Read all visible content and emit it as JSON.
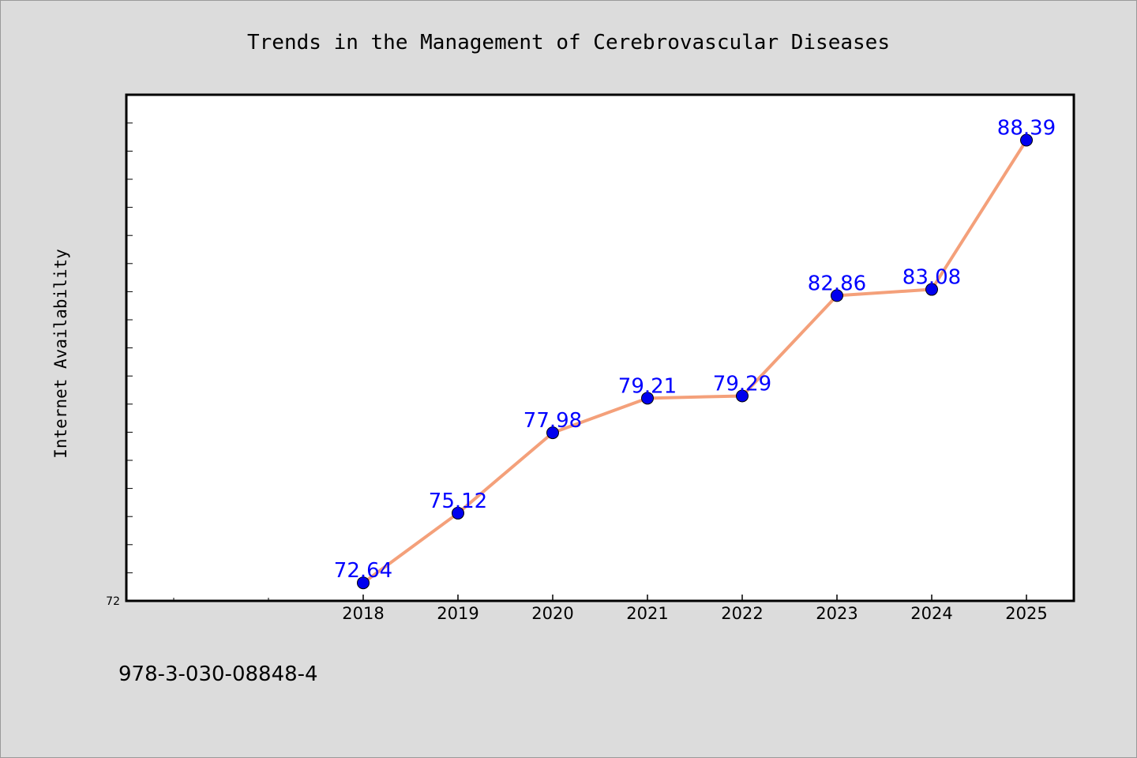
{
  "chart_data": {
    "type": "line",
    "title": "Trends in the Management of Cerebrovascular Diseases",
    "ylabel": "Internet Availability",
    "xlabel": "",
    "categories": [
      "2018",
      "2019",
      "2020",
      "2021",
      "2022",
      "2023",
      "2024",
      "2025"
    ],
    "values": [
      72.64,
      75.12,
      77.98,
      79.21,
      79.29,
      82.86,
      83.08,
      88.39
    ],
    "data_labels": [
      "72.64",
      "75.12",
      "77.98",
      "79.21",
      "79.29",
      "82.86",
      "83.08",
      "88.39"
    ],
    "ylim": [
      72,
      90
    ],
    "ytick_labels": [
      "72"
    ],
    "grid": false,
    "legend": "none",
    "colors": {
      "line": "#f4a07a",
      "marker": "#0000ee",
      "label": "#0000ff",
      "background": "#dcdcdc",
      "plot_area": "#ffffff"
    }
  },
  "footer": {
    "isbn": "978-3-030-08848-4"
  }
}
